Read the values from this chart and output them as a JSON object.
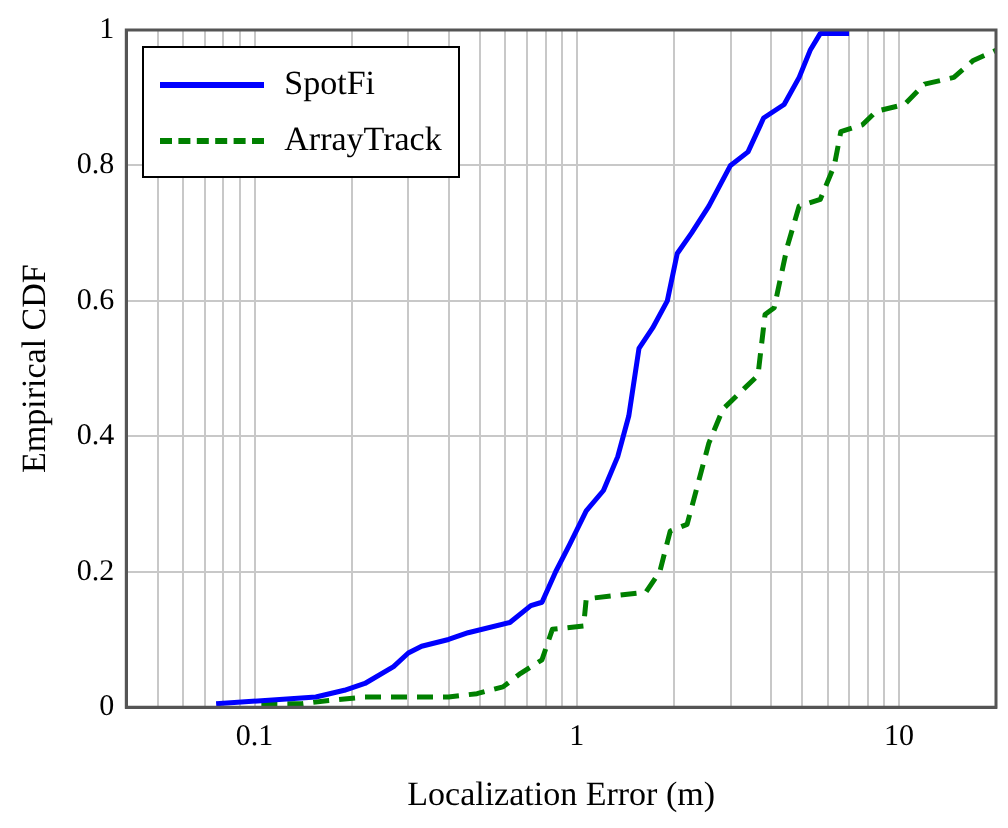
{
  "chart_data": {
    "type": "line",
    "xlabel": "Localization Error (m)",
    "ylabel": "Empirical CDF",
    "log": "x",
    "grid": true,
    "legend": "top left",
    "marker": "none",
    "xlim": [
      0.04,
      20
    ],
    "ylim": [
      0,
      1
    ],
    "xticks": [
      {
        "value": 0.05,
        "label": null
      },
      {
        "value": 0.06,
        "label": null
      },
      {
        "value": 0.07,
        "label": null
      },
      {
        "value": 0.08,
        "label": null
      },
      {
        "value": 0.09,
        "label": null
      },
      {
        "value": 0.1,
        "label": "0.1"
      },
      {
        "value": 0.2,
        "label": null
      },
      {
        "value": 0.3,
        "label": null
      },
      {
        "value": 0.4,
        "label": null
      },
      {
        "value": 0.5,
        "label": null
      },
      {
        "value": 0.6,
        "label": null
      },
      {
        "value": 0.7,
        "label": null
      },
      {
        "value": 0.8,
        "label": null
      },
      {
        "value": 0.9,
        "label": null
      },
      {
        "value": 1,
        "label": "1"
      },
      {
        "value": 2,
        "label": null
      },
      {
        "value": 3,
        "label": null
      },
      {
        "value": 4,
        "label": null
      },
      {
        "value": 5,
        "label": null
      },
      {
        "value": 6,
        "label": null
      },
      {
        "value": 7,
        "label": null
      },
      {
        "value": 8,
        "label": null
      },
      {
        "value": 9,
        "label": null
      },
      {
        "value": 10,
        "label": "10"
      },
      {
        "value": 20,
        "label": null
      }
    ],
    "yticks": [
      0,
      0.2,
      0.4,
      0.6,
      0.8,
      1
    ],
    "series": [
      {
        "name": "SpotFi",
        "color": "#0000ff",
        "line_style": "solid",
        "x": [
          0.076,
          0.155,
          0.19,
          0.22,
          0.27,
          0.3,
          0.33,
          0.4,
          0.46,
          0.62,
          0.72,
          0.78,
          0.86,
          0.95,
          1.07,
          1.21,
          1.34,
          1.45,
          1.56,
          1.72,
          1.91,
          2.05,
          2.27,
          2.57,
          3,
          3.4,
          3.8,
          4.4,
          4.9,
          5.3,
          5.7,
          7
        ],
        "values": [
          0.005,
          0.015,
          0.025,
          0.035,
          0.06,
          0.08,
          0.09,
          0.1,
          0.11,
          0.125,
          0.15,
          0.155,
          0.2,
          0.24,
          0.29,
          0.32,
          0.37,
          0.43,
          0.53,
          0.56,
          0.6,
          0.67,
          0.7,
          0.74,
          0.8,
          0.82,
          0.87,
          0.89,
          0.93,
          0.97,
          0.995,
          0.995
        ]
      },
      {
        "name": "ArrayTrack",
        "color": "#008000",
        "line_style": "dashed",
        "x": [
          0.105,
          0.14,
          0.17,
          0.22,
          0.4,
          0.49,
          0.59,
          0.67,
          0.78,
          0.84,
          1.05,
          1.07,
          1.64,
          1.81,
          1.95,
          2.2,
          2.57,
          2.84,
          3.3,
          3.65,
          3.84,
          4.1,
          4.5,
          4.9,
          5.7,
          6.3,
          6.6,
          7.7,
          8.5,
          10.4,
          12,
          14.8,
          17,
          20
        ],
        "values": [
          0.005,
          0.005,
          0.01,
          0.015,
          0.015,
          0.02,
          0.03,
          0.05,
          0.07,
          0.115,
          0.12,
          0.16,
          0.17,
          0.2,
          0.26,
          0.27,
          0.39,
          0.44,
          0.47,
          0.49,
          0.58,
          0.59,
          0.68,
          0.74,
          0.75,
          0.8,
          0.85,
          0.86,
          0.88,
          0.89,
          0.92,
          0.93,
          0.955,
          0.97
        ]
      }
    ]
  }
}
